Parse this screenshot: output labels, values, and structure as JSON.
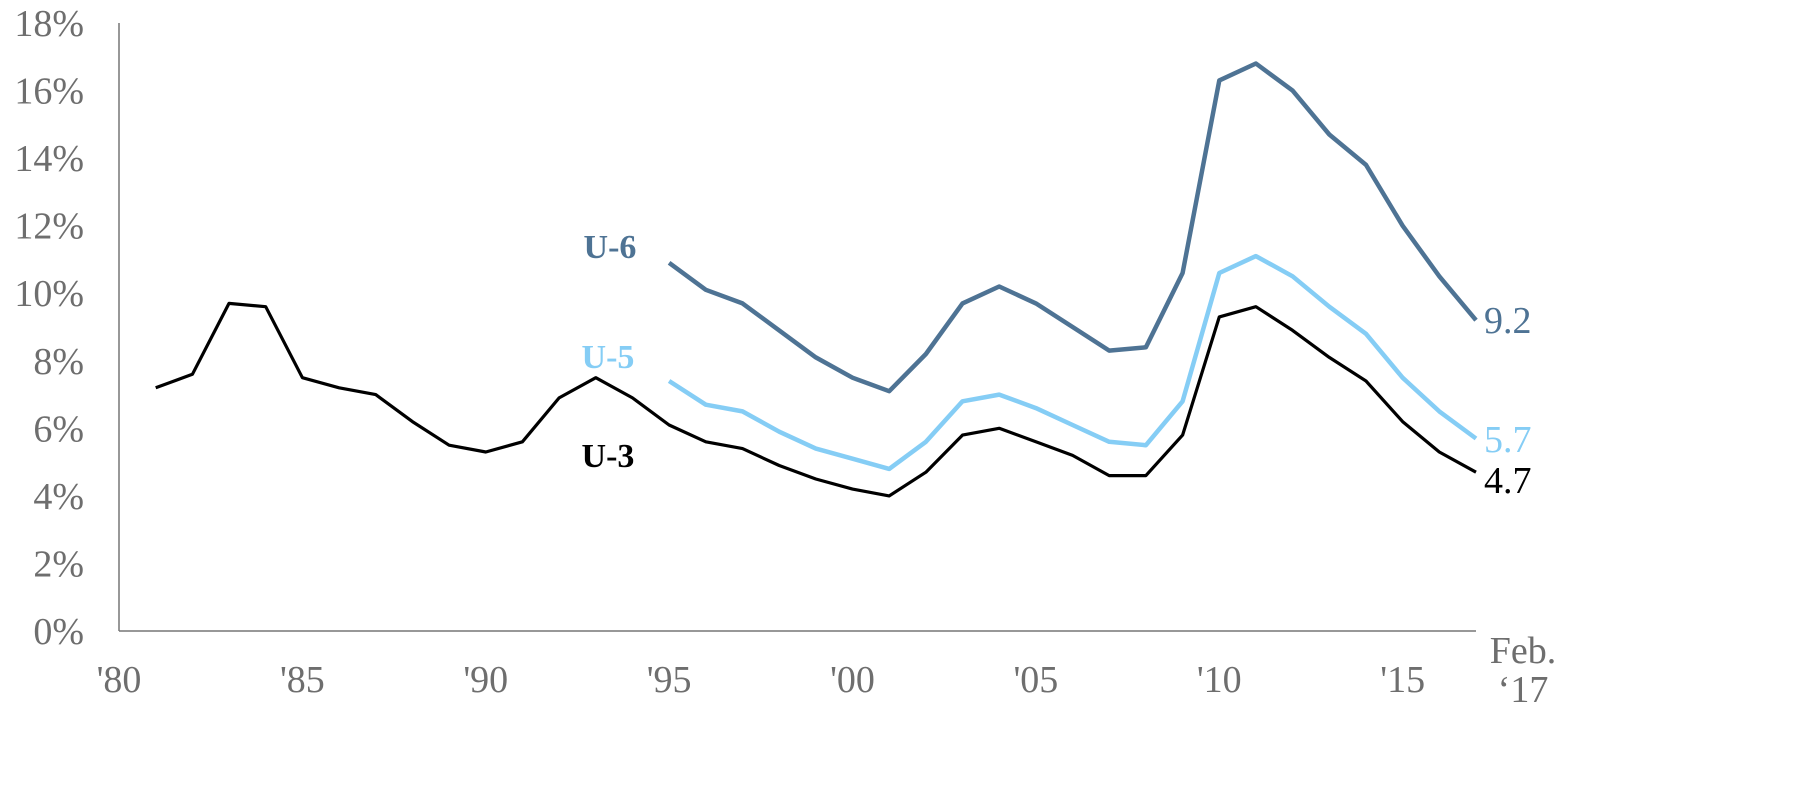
{
  "chart_data": {
    "type": "line",
    "title": "",
    "xlabel": "",
    "ylabel": "",
    "ylim": [
      0,
      18
    ],
    "xlim": [
      1980,
      2017
    ],
    "grid": false,
    "legend": "inline labels",
    "y_ticks": [
      {
        "value": 0,
        "label": "0%"
      },
      {
        "value": 2,
        "label": "2%"
      },
      {
        "value": 4,
        "label": "4%"
      },
      {
        "value": 6,
        "label": "6%"
      },
      {
        "value": 8,
        "label": "8%"
      },
      {
        "value": 10,
        "label": "10%"
      },
      {
        "value": 12,
        "label": "12%"
      },
      {
        "value": 14,
        "label": "14%"
      },
      {
        "value": 16,
        "label": "16%"
      },
      {
        "value": 18,
        "label": "18%"
      }
    ],
    "x_ticks": [
      {
        "value": 1980,
        "label": "'80"
      },
      {
        "value": 1985,
        "label": "'85"
      },
      {
        "value": 1990,
        "label": "'90"
      },
      {
        "value": 1995,
        "label": "'95"
      },
      {
        "value": 2000,
        "label": "'00"
      },
      {
        "value": 2005,
        "label": "'05"
      },
      {
        "value": 2010,
        "label": "'10"
      },
      {
        "value": 2015,
        "label": "'15"
      },
      {
        "value": 2017,
        "label": "Feb. ‘17"
      }
    ],
    "series": [
      {
        "name": "U-6",
        "color": "#4e7394",
        "end_label": "9.2",
        "x": [
          1995,
          1996,
          1997,
          1998,
          1999,
          2000,
          2001,
          2002,
          2003,
          2004,
          2005,
          2006,
          2007,
          2008,
          2009,
          2010,
          2011,
          2012,
          2013,
          2014,
          2015,
          2016,
          2017
        ],
        "y": [
          10.9,
          10.1,
          9.7,
          8.9,
          8.1,
          7.5,
          7.1,
          8.2,
          9.7,
          10.2,
          9.7,
          9.0,
          8.3,
          8.4,
          10.6,
          16.3,
          16.8,
          16.0,
          14.7,
          13.8,
          12.0,
          10.5,
          9.2
        ]
      },
      {
        "name": "U-5",
        "color": "#85cdf5",
        "end_label": "5.7",
        "x": [
          1995,
          1996,
          1997,
          1998,
          1999,
          2000,
          2001,
          2002,
          2003,
          2004,
          2005,
          2006,
          2007,
          2008,
          2009,
          2010,
          2011,
          2012,
          2013,
          2014,
          2015,
          2016,
          2017
        ],
        "y": [
          7.4,
          6.7,
          6.5,
          5.9,
          5.4,
          5.1,
          4.8,
          5.6,
          6.8,
          7.0,
          6.6,
          6.1,
          5.6,
          5.5,
          6.8,
          10.6,
          11.1,
          10.5,
          9.6,
          8.8,
          7.5,
          6.5,
          5.7
        ]
      },
      {
        "name": "U-3",
        "color": "#000000",
        "end_label": "4.7",
        "x": [
          1981,
          1982,
          1983,
          1984,
          1985,
          1986,
          1987,
          1988,
          1989,
          1990,
          1991,
          1992,
          1993,
          1994,
          1995,
          1996,
          1997,
          1998,
          1999,
          2000,
          2001,
          2002,
          2003,
          2004,
          2005,
          2006,
          2007,
          2008,
          2009,
          2010,
          2011,
          2012,
          2013,
          2014,
          2015,
          2016,
          2017
        ],
        "y": [
          7.2,
          7.6,
          9.7,
          9.6,
          7.5,
          7.2,
          7.0,
          6.2,
          5.5,
          5.3,
          5.6,
          6.9,
          7.5,
          6.9,
          6.1,
          5.6,
          5.4,
          4.9,
          4.5,
          4.2,
          4.0,
          4.7,
          5.8,
          6.0,
          5.6,
          5.2,
          4.6,
          4.6,
          5.8,
          9.3,
          9.6,
          8.9,
          8.1,
          7.4,
          6.2,
          5.3,
          4.7
        ]
      }
    ]
  }
}
